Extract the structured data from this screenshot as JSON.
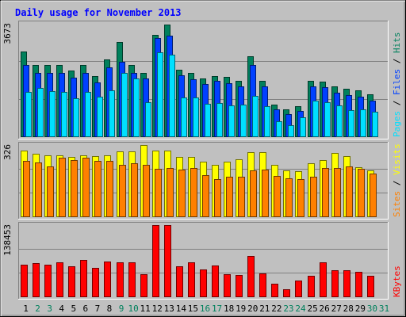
{
  "chart_data": {
    "type": "bar",
    "title": "Daily usage for November 2013",
    "days": [
      "1",
      "2",
      "3",
      "4",
      "5",
      "6",
      "7",
      "8",
      "9",
      "10",
      "11",
      "12",
      "13",
      "14",
      "15",
      "16",
      "17",
      "18",
      "19",
      "20",
      "21",
      "22",
      "23",
      "24",
      "25",
      "26",
      "27",
      "28",
      "29",
      "30",
      "31"
    ],
    "weekend_days": [
      "2",
      "3",
      "9",
      "10",
      "16",
      "17",
      "23",
      "24",
      "30",
      "31"
    ],
    "panels": {
      "hits": {
        "max_label": "3673",
        "ymax": 3673,
        "right_labels": [
          {
            "text": "Pages",
            "color_key": "pages"
          },
          {
            "text": " / ",
            "color_key": "separator"
          },
          {
            "text": "Files",
            "color_key": "files"
          },
          {
            "text": " / ",
            "color_key": "separator"
          },
          {
            "text": "Hits",
            "color_key": "hits"
          }
        ],
        "series": [
          {
            "key": "hits",
            "values": [
              2780,
              2340,
              2340,
              2340,
              2150,
              2340,
              1960,
              2520,
              3090,
              2340,
              2060,
              3300,
              3660,
              2180,
              2060,
              1890,
              1960,
              1950,
              1800,
              2600,
              1800,
              1030,
              870,
              990,
              1800,
              1780,
              1620,
              1550,
              1500,
              1360,
              0
            ]
          },
          {
            "key": "files",
            "values": [
              2320,
              2060,
              2060,
              2060,
              1920,
              2060,
              1750,
              2250,
              2440,
              2060,
              1900,
              3200,
              3290,
              1980,
              1850,
              1720,
              1800,
              1740,
              1640,
              2320,
              1640,
              870,
              720,
              820,
              1620,
              1600,
              1420,
              1350,
              1300,
              1170,
              0
            ]
          },
          {
            "key": "pages",
            "values": [
              1450,
              1570,
              1480,
              1450,
              1250,
              1460,
              1290,
              1490,
              2070,
              1900,
              1110,
              2730,
              2670,
              1280,
              1270,
              1060,
              1080,
              1000,
              1030,
              1330,
              980,
              490,
              370,
              630,
              1160,
              1110,
              1000,
              850,
              870,
              790,
              0
            ]
          }
        ]
      },
      "visits": {
        "max_label": "326",
        "ymax": 326,
        "right_labels": [
          {
            "text": "Sites",
            "color_key": "sites"
          },
          {
            "text": " / ",
            "color_key": "separator"
          },
          {
            "text": "Visits",
            "color_key": "visits"
          }
        ],
        "series": [
          {
            "key": "visits",
            "values": [
              300,
              285,
              280,
              280,
              270,
              280,
              275,
              278,
              296,
              296,
              326,
              300,
              300,
              272,
              270,
              250,
              235,
              251,
              260,
              293,
              292,
              235,
              210,
              205,
              244,
              256,
              291,
              275,
              226,
              211,
              0
            ]
          },
          {
            "key": "sites",
            "values": [
              252,
              245,
              230,
              268,
              258,
              268,
              254,
              254,
              236,
              241,
              235,
              217,
              220,
              215,
              222,
              187,
              170,
              182,
              182,
              210,
              212,
              186,
              175,
              170,
              182,
              222,
              220,
              227,
              216,
              194,
              0
            ]
          }
        ]
      },
      "kbytes": {
        "max_label": "138453",
        "ymax": 138453,
        "right_labels": [
          {
            "text": "KBytes",
            "color_key": "kbytes"
          }
        ],
        "series": [
          {
            "key": "kbytes",
            "values": [
              61500,
              64800,
              61500,
              66000,
              58300,
              70000,
              55600,
              68000,
              66000,
              66000,
              42800,
              138450,
              138450,
              58300,
              66000,
              52500,
              60400,
              42800,
              42000,
              77700,
              44200,
              24600,
              14400,
              30600,
              39700,
              66000,
              51500,
              50000,
              48000,
              39700,
              0
            ]
          }
        ]
      }
    },
    "colors": {
      "hits": "#00805c",
      "files": "#0040ff",
      "pages": "#00e0ff",
      "visits": "#ffff00",
      "sites": "#ff8000",
      "kbytes": "#ff0000",
      "separator": "#000000",
      "title": "#0000ff",
      "weekday_label": "#000000",
      "weekend_label": "#00805c",
      "background": "#c0c0c0",
      "frame": "#c0c0c0"
    }
  }
}
